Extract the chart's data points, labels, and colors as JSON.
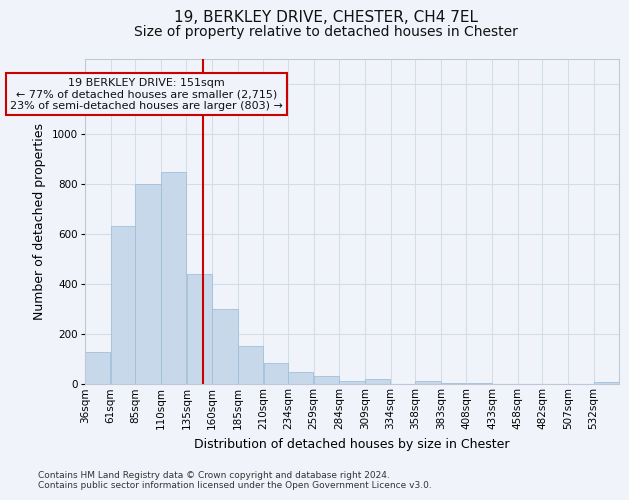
{
  "title_line1": "19, BERKLEY DRIVE, CHESTER, CH4 7EL",
  "title_line2": "Size of property relative to detached houses in Chester",
  "xlabel": "Distribution of detached houses by size in Chester",
  "ylabel": "Number of detached properties",
  "footnote": "Contains HM Land Registry data © Crown copyright and database right 2024.\nContains public sector information licensed under the Open Government Licence v3.0.",
  "annotation_line1": "19 BERKLEY DRIVE: 151sqm",
  "annotation_line2": "← 77% of detached houses are smaller (2,715)",
  "annotation_line3": "23% of semi-detached houses are larger (803) →",
  "property_size": 151,
  "bar_left_edges": [
    36,
    61,
    85,
    110,
    135,
    160,
    185,
    210,
    234,
    259,
    284,
    309,
    334,
    358,
    383,
    408,
    433,
    458,
    482,
    507,
    532
  ],
  "bar_widths": [
    25,
    24,
    25,
    25,
    25,
    25,
    25,
    24,
    25,
    25,
    25,
    25,
    24,
    25,
    25,
    25,
    25,
    24,
    25,
    25,
    25
  ],
  "bar_heights": [
    130,
    635,
    800,
    850,
    440,
    300,
    155,
    85,
    50,
    35,
    15,
    20,
    0,
    15,
    5,
    5,
    0,
    0,
    0,
    0,
    10
  ],
  "bar_color": "#c8d8eb",
  "bar_edge_color": "#a0c0d8",
  "vline_x": 151,
  "vline_color": "#cc0000",
  "annotation_box_color": "#cc0000",
  "ylim": [
    0,
    1300
  ],
  "yticks": [
    0,
    200,
    400,
    600,
    800,
    1000,
    1200
  ],
  "xlim": [
    36,
    557
  ],
  "x_tick_labels": [
    "36sqm",
    "61sqm",
    "85sqm",
    "110sqm",
    "135sqm",
    "160sqm",
    "185sqm",
    "210sqm",
    "234sqm",
    "259sqm",
    "284sqm",
    "309sqm",
    "334sqm",
    "358sqm",
    "383sqm",
    "408sqm",
    "433sqm",
    "458sqm",
    "482sqm",
    "507sqm",
    "532sqm"
  ],
  "grid_color": "#d4dce8",
  "bg_color": "#f0f4fa",
  "title_fontsize": 11,
  "subtitle_fontsize": 10,
  "axis_label_fontsize": 9,
  "tick_fontsize": 7.5,
  "annotation_fontsize": 8
}
